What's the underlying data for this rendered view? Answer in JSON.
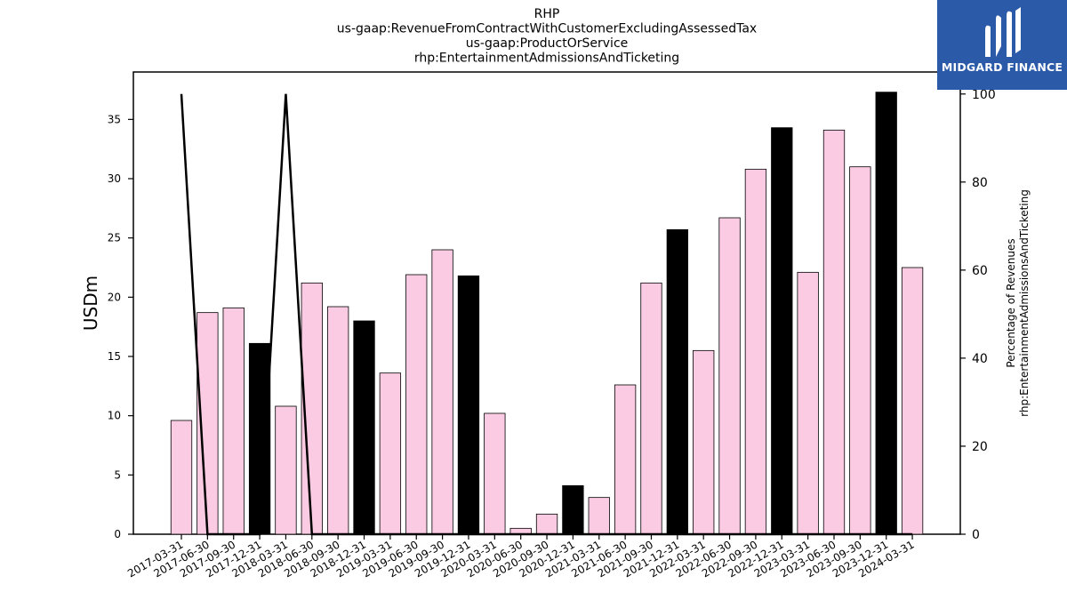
{
  "chart_data": {
    "type": "bar",
    "title_lines": [
      "RHP",
      "us-gaap:RevenueFromContractWithCustomerExcludingAssessedTax",
      "us-gaap:ProductOrService",
      "rhp:EntertainmentAdmissionsAndTicketing"
    ],
    "ylabel": "USDm",
    "ylabel_right": [
      "Percentage of Revenues",
      "rhp:EntertainmentAdmissionsAndTicketing"
    ],
    "ylim": [
      0,
      39
    ],
    "ylim_right": [
      0,
      105
    ],
    "yticks": [
      0,
      5,
      10,
      15,
      20,
      25,
      30,
      35
    ],
    "yticks_right": [
      0,
      20,
      40,
      60,
      80,
      100
    ],
    "categories": [
      "2017-03-31",
      "2017-06-30",
      "2017-09-30",
      "2017-12-31",
      "2018-03-31",
      "2018-06-30",
      "2018-09-30",
      "2018-12-31",
      "2019-03-31",
      "2019-06-30",
      "2019-09-30",
      "2019-12-31",
      "2020-03-31",
      "2020-06-30",
      "2020-09-30",
      "2020-12-31",
      "2021-03-31",
      "2021-06-30",
      "2021-09-30",
      "2021-12-31",
      "2022-03-31",
      "2022-06-30",
      "2022-09-30",
      "2022-12-31",
      "2023-03-31",
      "2023-06-30",
      "2023-09-30",
      "2023-12-31",
      "2024-03-31"
    ],
    "values": [
      9.6,
      18.7,
      19.1,
      16.1,
      10.8,
      21.2,
      19.2,
      18.0,
      13.6,
      21.9,
      24.0,
      21.8,
      10.2,
      0.5,
      1.7,
      4.1,
      3.1,
      12.6,
      21.2,
      25.7,
      15.5,
      26.7,
      30.8,
      34.3,
      22.1,
      34.1,
      31.0,
      37.3,
      22.5
    ],
    "bar_colors": [
      "#fbcbe3",
      "#fbcbe3",
      "#fbcbe3",
      "#000000",
      "#fbcbe3",
      "#fbcbe3",
      "#fbcbe3",
      "#000000",
      "#fbcbe3",
      "#fbcbe3",
      "#fbcbe3",
      "#000000",
      "#fbcbe3",
      "#fbcbe3",
      "#fbcbe3",
      "#000000",
      "#fbcbe3",
      "#fbcbe3",
      "#fbcbe3",
      "#000000",
      "#fbcbe3",
      "#fbcbe3",
      "#fbcbe3",
      "#000000",
      "#fbcbe3",
      "#fbcbe3",
      "#fbcbe3",
      "#000000",
      "#fbcbe3"
    ],
    "line_values": [
      100,
      0,
      0,
      0,
      100,
      0,
      0,
      0,
      0,
      0,
      0,
      0,
      0,
      0,
      0,
      0,
      0,
      0,
      0,
      0,
      0,
      0,
      0,
      0,
      0,
      0,
      0,
      0,
      0
    ],
    "line_color": "#000000",
    "grid": false
  },
  "logo": {
    "text": "MIDGARD FINANCE",
    "background": "#2a5aa8"
  }
}
